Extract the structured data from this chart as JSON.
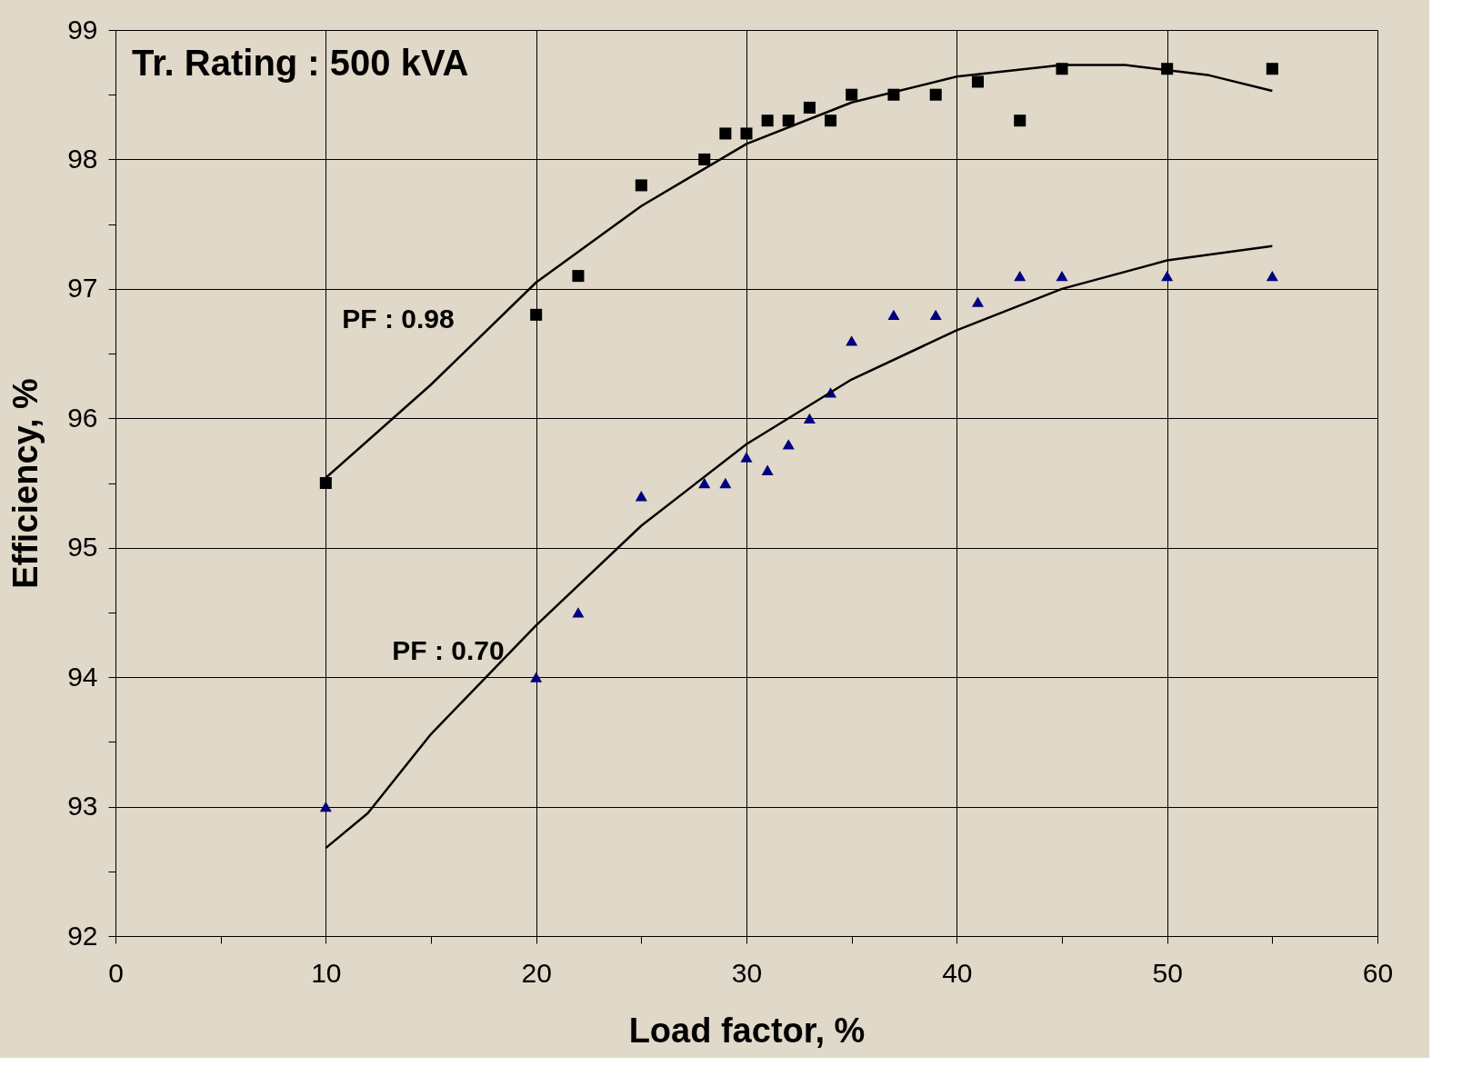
{
  "chart_data": {
    "type": "scatter",
    "xlabel": "Load factor, %",
    "ylabel": "Efficiency, %",
    "annotations": [
      "Tr. Rating : 500 kVA"
    ],
    "xlim": [
      0,
      60
    ],
    "xticks": [
      0,
      {
        "value": 5,
        "label": null
      },
      10,
      {
        "value": 15,
        "label": null
      },
      20,
      {
        "value": 25,
        "label": null
      },
      30,
      {
        "value": 35,
        "label": null
      },
      40,
      {
        "value": 45,
        "label": null
      },
      50,
      {
        "value": 55,
        "label": null
      },
      60
    ],
    "ylim": [
      92,
      99
    ],
    "yticks": [
      92,
      {
        "value": 92.5,
        "label": null
      },
      93,
      {
        "value": 93.5,
        "label": null
      },
      94,
      {
        "value": 94.5,
        "label": null
      },
      95,
      {
        "value": 95.5,
        "label": null
      },
      96,
      {
        "value": 96.5,
        "label": null
      },
      97,
      {
        "value": 97.5,
        "label": null
      },
      98,
      {
        "value": 98.5,
        "label": null
      },
      99
    ],
    "grid": true,
    "legend": false,
    "series": [
      {
        "name": "PF : 0.98",
        "marker": "square",
        "color": "#000000",
        "x": [
          10,
          20,
          22,
          25,
          28,
          29,
          30,
          31,
          32,
          33,
          34,
          35,
          37,
          39,
          41,
          43,
          45,
          50,
          55
        ],
        "values": [
          95.5,
          96.8,
          97.1,
          97.8,
          98.0,
          98.2,
          98.2,
          98.3,
          98.3,
          98.4,
          98.3,
          98.5,
          98.5,
          98.5,
          98.6,
          98.3,
          98.7,
          98.7,
          98.7
        ]
      },
      {
        "name": "PF : 0.70",
        "marker": "triangle",
        "color": "#000080",
        "x": [
          10,
          20,
          22,
          25,
          28,
          29,
          30,
          31,
          32,
          33,
          34,
          35,
          37,
          39,
          41,
          43,
          45,
          50,
          55
        ],
        "values": [
          93.0,
          94.0,
          94.5,
          95.4,
          95.5,
          95.5,
          95.7,
          95.6,
          95.8,
          96.0,
          96.2,
          96.6,
          96.8,
          96.8,
          96.9,
          97.1,
          97.1,
          97.1,
          97.1
        ]
      },
      {
        "type": "line",
        "color": "#000000",
        "x": [
          10,
          15,
          20,
          25,
          30,
          35,
          40,
          45,
          48,
          52,
          55
        ],
        "values": [
          95.54,
          96.26,
          97.05,
          97.64,
          98.12,
          98.44,
          98.64,
          98.73,
          98.73,
          98.65,
          98.53
        ]
      },
      {
        "type": "line",
        "color": "#000000",
        "x": [
          10,
          12,
          15,
          20,
          25,
          30,
          35,
          40,
          45,
          50,
          55
        ],
        "values": [
          92.68,
          92.95,
          93.56,
          94.4,
          95.17,
          95.8,
          96.3,
          96.68,
          97.0,
          97.22,
          97.33
        ]
      }
    ]
  }
}
